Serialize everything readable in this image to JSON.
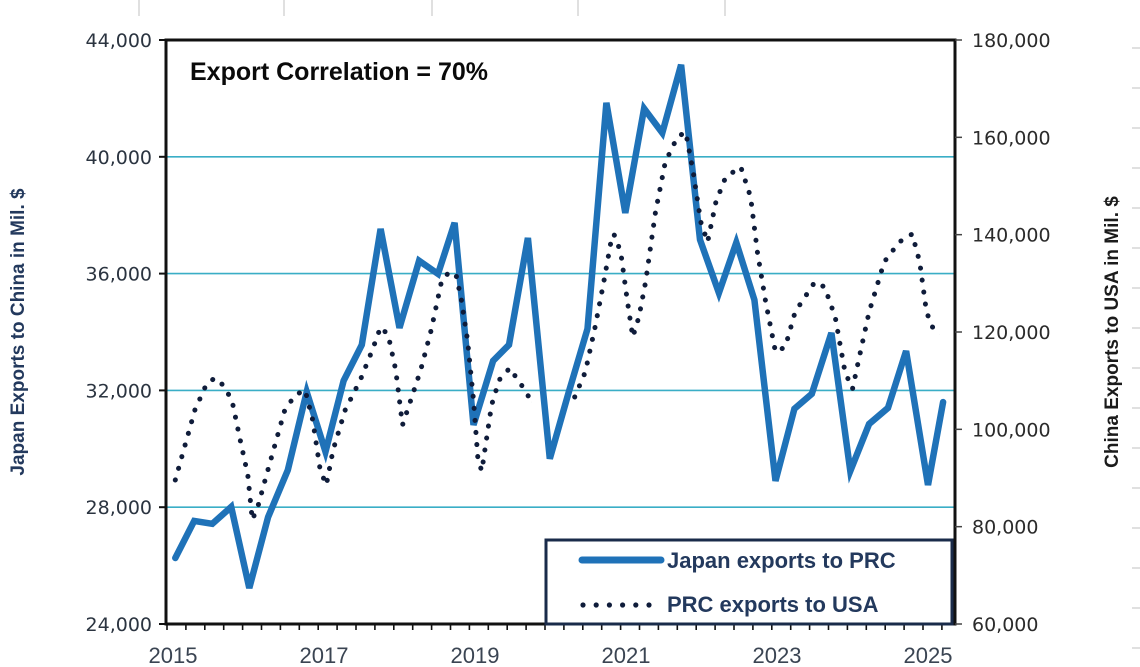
{
  "chart_data": {
    "type": "line",
    "title": "",
    "annotation": "Export Correlation = 70%",
    "xlabel": "",
    "x_ticks": [
      "2015",
      "2017",
      "2019",
      "2021",
      "2023",
      "2025"
    ],
    "x_range": [
      2015,
      2025.3
    ],
    "y_left": {
      "label": "Japan Exports to China in Mil. $",
      "range": [
        24000,
        44000
      ],
      "ticks": [
        "24,000",
        "28,000",
        "32,000",
        "36,000",
        "40,000",
        "44,000"
      ],
      "tick_values": [
        24000,
        28000,
        32000,
        36000,
        40000,
        44000
      ]
    },
    "y_right": {
      "label": "China Exports to USA in Mil. $",
      "range": [
        60000,
        180000
      ],
      "ticks": [
        "60,000",
        "80,000",
        "100,000",
        "120,000",
        "140,000",
        "160,000",
        "180,000"
      ],
      "tick_values": [
        60000,
        80000,
        100000,
        120000,
        140000,
        160000,
        180000
      ]
    },
    "grid": true,
    "gridline_values_left": [
      28000,
      32000,
      36000,
      40000
    ],
    "legend_position": "bottom-right",
    "series": [
      {
        "name": "Japan exports to PRC",
        "axis": "left",
        "style": "solid",
        "color": "#1f72b8",
        "x": [
          2015.07,
          2015.32,
          2015.56,
          2015.81,
          2016.05,
          2016.3,
          2016.56,
          2016.81,
          2017.06,
          2017.3,
          2017.54,
          2017.79,
          2018.04,
          2018.3,
          2018.55,
          2018.77,
          2019.02,
          2019.28,
          2019.49,
          2019.74,
          2020.03,
          2020.28,
          2020.53,
          2020.78,
          2021.03,
          2021.28,
          2021.52,
          2021.77,
          2022.02,
          2022.27,
          2022.5,
          2022.74,
          2023.02,
          2023.27,
          2023.5,
          2023.76,
          2024.01,
          2024.26,
          2024.51,
          2024.75,
          2025.04,
          2025.24
        ],
        "values": [
          26260,
          27530,
          27430,
          28010,
          25230,
          27660,
          29270,
          31950,
          29900,
          32330,
          33560,
          37530,
          34140,
          36440,
          35990,
          37740,
          30820,
          33010,
          33560,
          37220,
          29660,
          31920,
          34110,
          41850,
          38080,
          41650,
          40820,
          43150,
          37160,
          35340,
          37060,
          35100,
          28900,
          31370,
          31880,
          33970,
          29240,
          30850,
          31400,
          33350,
          28760,
          31600
        ]
      },
      {
        "name": "PRC exports to USA",
        "axis": "right",
        "style": "dotted",
        "color": "#0f1c3a",
        "segments": [
          {
            "x": [
              2015.07,
              2015.2,
              2015.33,
              2015.49,
              2015.6,
              2015.7,
              2015.82,
              2015.93,
              2016.03,
              2016.09,
              2016.17,
              2016.26,
              2016.39,
              2016.52,
              2016.66,
              2016.79,
              2016.89,
              2016.99,
              2017.07,
              2017.16,
              2017.32,
              2017.52,
              2017.68,
              2017.79,
              2017.89,
              2017.99,
              2018.08,
              2018.19,
              2018.32,
              2018.46,
              2018.6,
              2018.7,
              2018.79,
              2018.86,
              2018.94,
              2019.02,
              2019.08,
              2019.13,
              2019.18,
              2019.26,
              2019.36,
              2019.5,
              2019.59,
              2019.7,
              2019.79
            ],
            "values": [
              89590,
              96780,
              103970,
              109520,
              110550,
              109110,
              106030,
              97810,
              90620,
              81370,
              84460,
              89590,
              96780,
              103970,
              107050,
              108080,
              101920,
              91640,
              88560,
              95750,
              103970,
              110130,
              116290,
              121020,
              119380,
              112190,
              100890,
              106030,
              112190,
              120410,
              130680,
              132330,
              131710,
              126580,
              118360,
              106030,
              93700,
              91440,
              96780,
              105000,
              110130,
              112600,
              110550,
              108080,
              105620
            ]
          },
          {
            "x": [
              2020.36,
              2020.5,
              2020.63,
              2020.74,
              2020.84,
              2020.88,
              2020.97,
              2021.06,
              2021.13,
              2021.21,
              2021.3,
              2021.43,
              2021.56,
              2021.72,
              2021.83,
              2021.93,
              2022.03,
              2022.12,
              2022.23,
              2022.36,
              2022.56,
              2022.69,
              2022.78,
              2022.89,
              2023.02,
              2023.15,
              2023.28,
              2023.54,
              2023.67,
              2023.81,
              2023.94,
              2024.04,
              2024.13,
              2024.26,
              2024.46,
              2024.66,
              2024.83,
              2024.93,
              2025.02,
              2025.1,
              2025.19
            ],
            "values": [
              106650,
              111790,
              121020,
              129860,
              138490,
              140130,
              136430,
              126170,
              118980,
              123090,
              130270,
              144660,
              154930,
              160070,
              161100,
              152880,
              142610,
              138490,
              146710,
              151850,
              153900,
              147740,
              136430,
              126170,
              115900,
              116930,
              124110,
              130270,
              129250,
              123090,
              111790,
              108290,
              114850,
              124110,
              134380,
              138490,
              140130,
              134380,
              124110,
              121020,
              119580
            ]
          }
        ]
      }
    ]
  },
  "legend": {
    "items": [
      {
        "label": "Japan exports to PRC",
        "style": "solid"
      },
      {
        "label": "PRC exports to USA",
        "style": "dotted"
      }
    ]
  }
}
